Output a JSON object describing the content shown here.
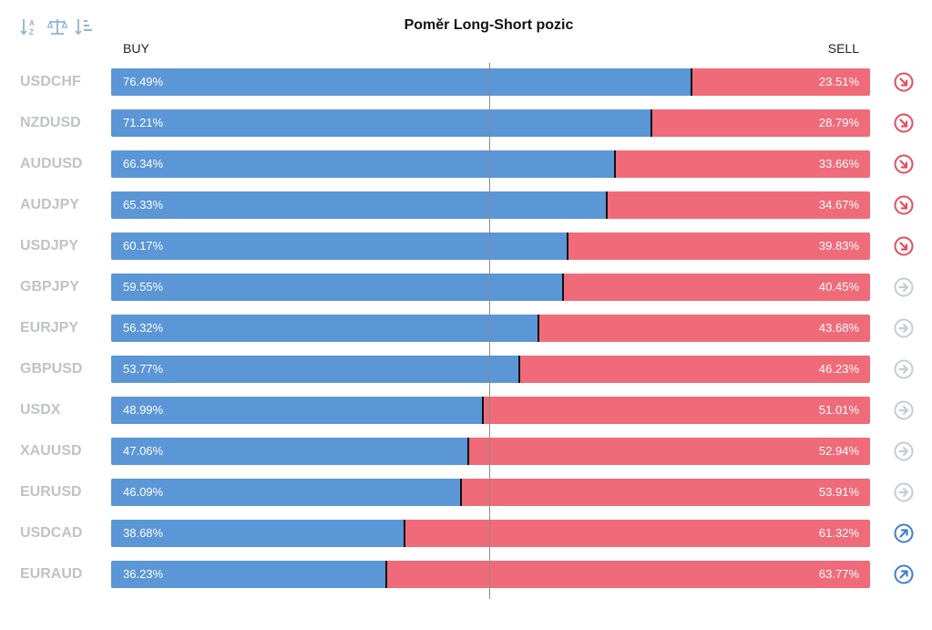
{
  "toolbar": {
    "icons": [
      "sort-alpha-icon",
      "balance-icon",
      "sort-amount-icon"
    ]
  },
  "header": {
    "title": "Poměr Long-Short pozic",
    "buy_label": "BUY",
    "sell_label": "SELL"
  },
  "colors": {
    "buy": "#5b96d6",
    "sell": "#ef6b79",
    "trend_down": "#e64c5a",
    "trend_neutral": "#c5ccd3",
    "trend_up": "#3d7fd0",
    "symbol_text": "#bfc3c7"
  },
  "chart_data": {
    "type": "bar",
    "stacked": true,
    "orientation": "horizontal",
    "title": "Poměr Long-Short pozic",
    "xlim": [
      0,
      100
    ],
    "categories": [
      "USDCHF",
      "NZDUSD",
      "AUDUSD",
      "AUDJPY",
      "USDJPY",
      "GBPJPY",
      "EURJPY",
      "GBPUSD",
      "USDX",
      "XAUUSD",
      "EURUSD",
      "USDCAD",
      "EURAUD"
    ],
    "series": [
      {
        "name": "BUY",
        "values": [
          76.49,
          71.21,
          66.34,
          65.33,
          60.17,
          59.55,
          56.32,
          53.77,
          48.99,
          47.06,
          46.09,
          38.68,
          36.23
        ]
      },
      {
        "name": "SELL",
        "values": [
          23.51,
          28.79,
          33.66,
          34.67,
          39.83,
          40.45,
          43.68,
          46.23,
          51.01,
          52.94,
          53.91,
          61.32,
          63.77
        ]
      }
    ],
    "rows": [
      {
        "symbol": "USDCHF",
        "buy": "76.49%",
        "sell": "23.51%",
        "trend": "down"
      },
      {
        "symbol": "NZDUSD",
        "buy": "71.21%",
        "sell": "28.79%",
        "trend": "down"
      },
      {
        "symbol": "AUDUSD",
        "buy": "66.34%",
        "sell": "33.66%",
        "trend": "down"
      },
      {
        "symbol": "AUDJPY",
        "buy": "65.33%",
        "sell": "34.67%",
        "trend": "down"
      },
      {
        "symbol": "USDJPY",
        "buy": "60.17%",
        "sell": "39.83%",
        "trend": "down"
      },
      {
        "symbol": "GBPJPY",
        "buy": "59.55%",
        "sell": "40.45%",
        "trend": "neutral"
      },
      {
        "symbol": "EURJPY",
        "buy": "56.32%",
        "sell": "43.68%",
        "trend": "neutral"
      },
      {
        "symbol": "GBPUSD",
        "buy": "53.77%",
        "sell": "46.23%",
        "trend": "neutral"
      },
      {
        "symbol": "USDX",
        "buy": "48.99%",
        "sell": "51.01%",
        "trend": "neutral"
      },
      {
        "symbol": "XAUUSD",
        "buy": "47.06%",
        "sell": "52.94%",
        "trend": "neutral"
      },
      {
        "symbol": "EURUSD",
        "buy": "46.09%",
        "sell": "53.91%",
        "trend": "neutral"
      },
      {
        "symbol": "USDCAD",
        "buy": "38.68%",
        "sell": "61.32%",
        "trend": "up"
      },
      {
        "symbol": "EURAUD",
        "buy": "36.23%",
        "sell": "63.77%",
        "trend": "up"
      }
    ]
  }
}
